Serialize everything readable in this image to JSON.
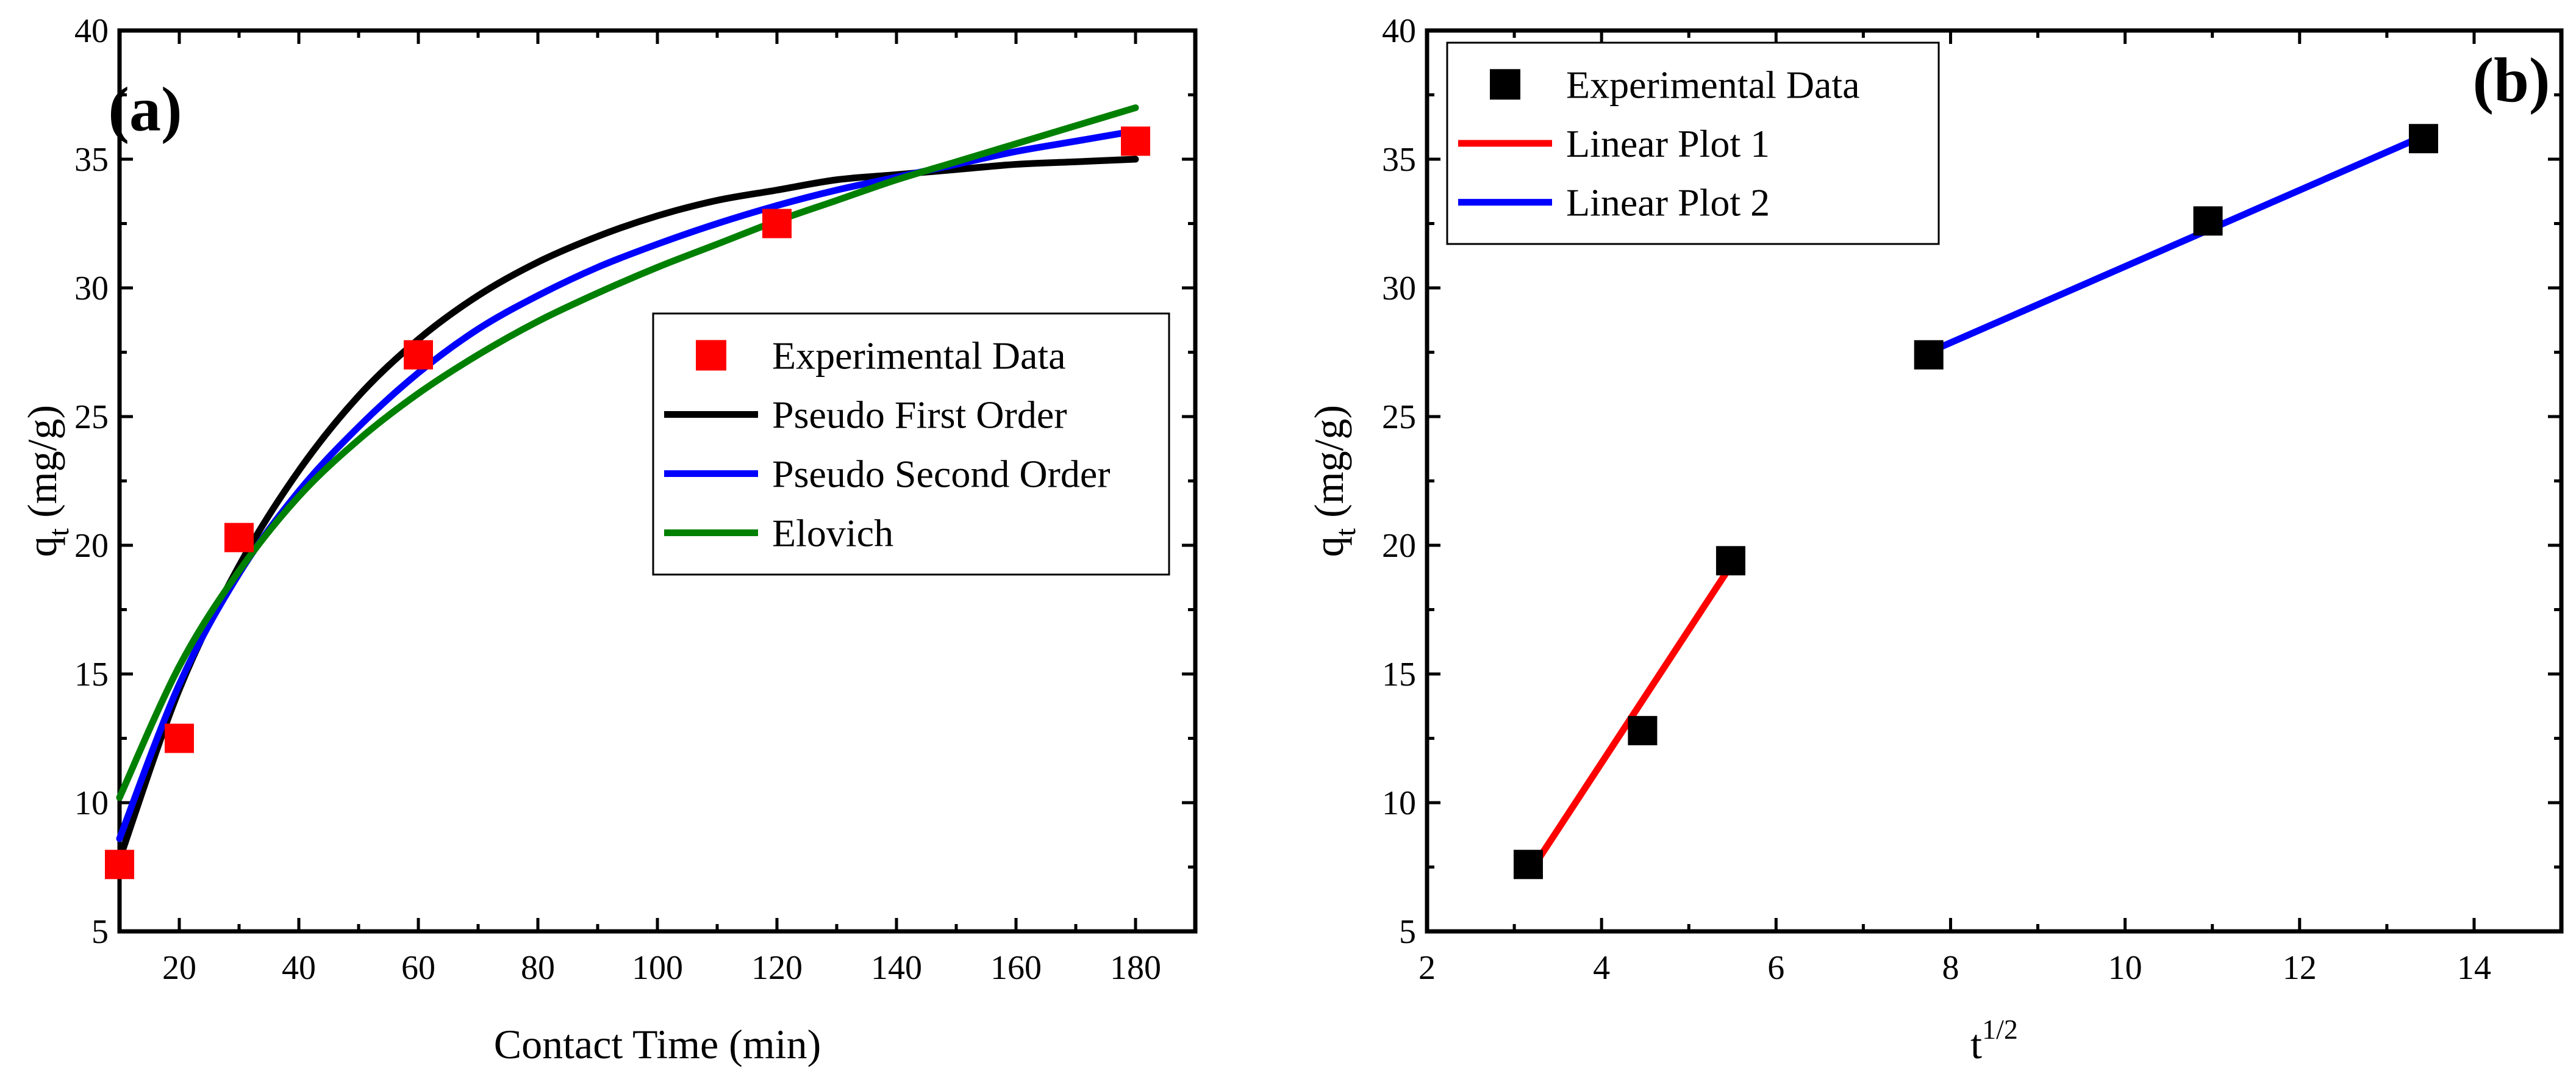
{
  "chart_data": [
    {
      "type": "scatter",
      "panel_label": "(a)",
      "xlabel": "Contact Time (min)",
      "ylabel": "q",
      "ylabel_sub": "t",
      "ylabel_unit": " (mg/g)",
      "xlim": [
        10,
        190
      ],
      "ylim": [
        5,
        40
      ],
      "x_ticks": [
        20,
        40,
        60,
        80,
        100,
        120,
        140,
        160,
        180
      ],
      "y_ticks": [
        5,
        10,
        15,
        20,
        25,
        30,
        35,
        40
      ],
      "legend_position": "center-right",
      "series": [
        {
          "name": "Experimental Data",
          "kind": "points",
          "marker": "square",
          "color": "#ff0000",
          "x": [
            10,
            20,
            30,
            60,
            120,
            180
          ],
          "y": [
            7.6,
            12.5,
            20.3,
            27.4,
            32.5,
            35.7
          ]
        },
        {
          "name": "Pseudo First Order",
          "kind": "line",
          "color": "#000000",
          "x": [
            10,
            20,
            30,
            40,
            50,
            60,
            70,
            80,
            90,
            100,
            110,
            120,
            130,
            140,
            150,
            160,
            170,
            180
          ],
          "y": [
            7.8,
            14.4,
            19.2,
            22.9,
            25.8,
            28.0,
            29.7,
            31.0,
            32.0,
            32.8,
            33.4,
            33.8,
            34.2,
            34.4,
            34.6,
            34.8,
            34.9,
            35.0
          ]
        },
        {
          "name": "Pseudo Second Order",
          "kind": "line",
          "color": "#0000ff",
          "x": [
            10,
            20,
            30,
            40,
            50,
            60,
            70,
            80,
            90,
            100,
            110,
            120,
            130,
            140,
            150,
            160,
            170,
            180
          ],
          "y": [
            8.6,
            14.6,
            18.9,
            22.1,
            24.6,
            26.7,
            28.4,
            29.7,
            30.8,
            31.7,
            32.5,
            33.2,
            33.8,
            34.3,
            34.8,
            35.3,
            35.7,
            36.1
          ]
        },
        {
          "name": "Elovich",
          "kind": "line",
          "color": "#008000",
          "x": [
            10,
            20,
            30,
            40,
            50,
            60,
            70,
            80,
            90,
            100,
            110,
            120,
            130,
            140,
            150,
            160,
            170,
            180
          ],
          "y": [
            10.2,
            15.3,
            19.0,
            21.9,
            24.1,
            25.9,
            27.4,
            28.7,
            29.8,
            30.8,
            31.7,
            32.6,
            33.4,
            34.2,
            34.9,
            35.6,
            36.3,
            37.0
          ]
        }
      ]
    },
    {
      "type": "scatter",
      "panel_label": "(b)",
      "xlabel": "t",
      "xlabel_sup": "1/2",
      "ylabel": "q",
      "ylabel_sub": "t",
      "ylabel_unit": " (mg/g)",
      "xlim": [
        2,
        15
      ],
      "ylim": [
        5,
        40
      ],
      "x_ticks": [
        2,
        4,
        6,
        8,
        10,
        12,
        14
      ],
      "y_ticks": [
        5,
        10,
        15,
        20,
        25,
        30,
        35,
        40
      ],
      "legend_position": "top-left",
      "series": [
        {
          "name": "Experimental Data",
          "kind": "points",
          "marker": "square",
          "color": "#000000",
          "x": [
            3.16,
            4.47,
            5.48,
            7.75,
            10.95,
            13.42
          ],
          "y": [
            7.6,
            12.8,
            19.4,
            27.4,
            32.6,
            35.8
          ]
        },
        {
          "name": "Linear Plot 1",
          "kind": "line",
          "color": "#ff0000",
          "x": [
            3.16,
            5.48
          ],
          "y": [
            7.2,
            19.2
          ]
        },
        {
          "name": "Linear Plot 2",
          "kind": "line",
          "color": "#0000ff",
          "x": [
            7.75,
            13.42
          ],
          "y": [
            27.5,
            35.9
          ]
        }
      ]
    }
  ]
}
